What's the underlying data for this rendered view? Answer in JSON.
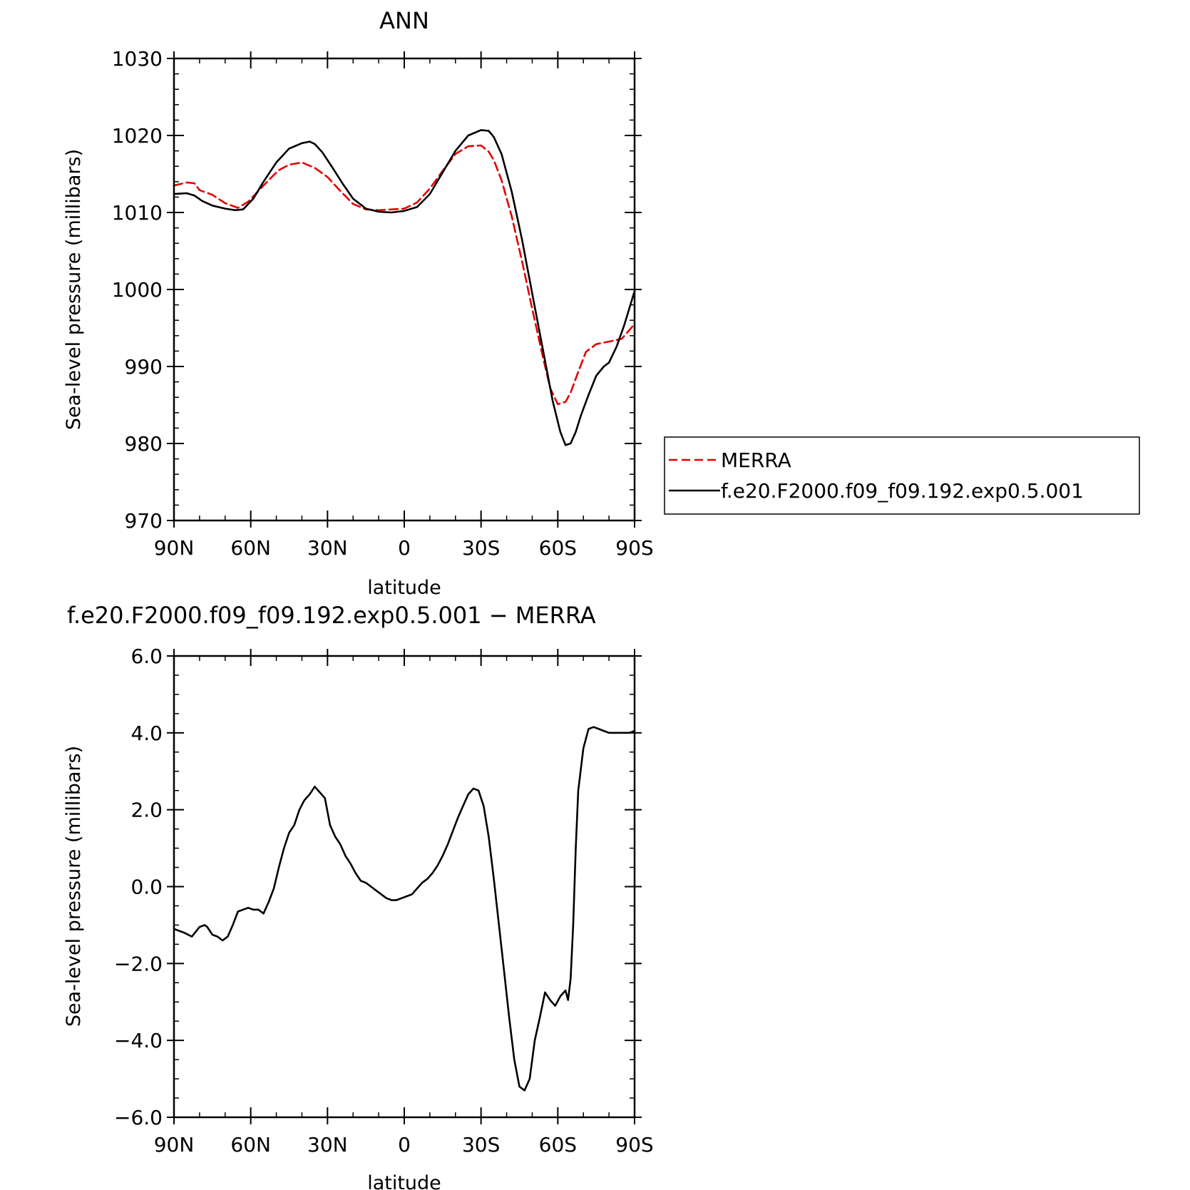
{
  "chart_data": [
    {
      "type": "line",
      "title": "ANN",
      "xlabel": "latitude",
      "ylabel": "Sea-level pressure (millibars)",
      "x_ticks": [
        "90N",
        "60N",
        "30N",
        "0",
        "30S",
        "60S",
        "90S"
      ],
      "y_ticks": [
        "970",
        "980",
        "990",
        "1000",
        "1010",
        "1020",
        "1030"
      ],
      "xlim": [
        90,
        -90
      ],
      "ylim": [
        970,
        1030
      ],
      "grid": false,
      "legend_position": "right",
      "series": [
        {
          "name": "MERRA",
          "color": "#e60000",
          "dash": "dashed",
          "x": [
            90,
            85,
            82,
            80,
            75,
            70,
            65,
            61,
            57,
            53,
            49,
            45,
            40,
            35,
            30,
            25,
            20,
            15,
            10,
            5,
            0,
            -5,
            -10,
            -15,
            -20,
            -25,
            -30,
            -33,
            -35,
            -38,
            -42,
            -46,
            -50,
            -54,
            -57,
            -60,
            -63,
            -65,
            -68,
            -71,
            -75,
            -78,
            -81,
            -85,
            -90
          ],
          "y": [
            1013.5,
            1013.9,
            1013.8,
            1012.9,
            1012.3,
            1011.2,
            1010.6,
            1011.4,
            1012.8,
            1014.2,
            1015.5,
            1016.2,
            1016.5,
            1015.8,
            1014.6,
            1012.8,
            1011.1,
            1010.4,
            1010.3,
            1010.4,
            1010.5,
            1011.3,
            1013.1,
            1015.4,
            1017.6,
            1018.6,
            1018.7,
            1017.9,
            1016.8,
            1014.2,
            1009.5,
            1003.7,
            997.5,
            991.5,
            987.2,
            985.1,
            985.4,
            986.6,
            989.3,
            991.9,
            992.9,
            993.1,
            993.3,
            993.6,
            995.5
          ]
        },
        {
          "name": "f.e20.F2000.f09_f09.192.exp0.5.001",
          "color": "#000000",
          "dash": "solid",
          "x": [
            90,
            85,
            82,
            79,
            75,
            70,
            66,
            63,
            59,
            55,
            50,
            45,
            40,
            37,
            35,
            32,
            28,
            24,
            20,
            15,
            10,
            5,
            0,
            -5,
            -10,
            -15,
            -20,
            -25,
            -30,
            -33,
            -35,
            -38,
            -42,
            -46,
            -50,
            -54,
            -58,
            -61,
            -63,
            -65,
            -67,
            -69,
            -72,
            -75,
            -78,
            -80,
            -83,
            -86,
            -90
          ],
          "y": [
            1012.4,
            1012.5,
            1012.2,
            1011.5,
            1010.9,
            1010.5,
            1010.3,
            1010.4,
            1011.8,
            1014.0,
            1016.5,
            1018.3,
            1019.0,
            1019.2,
            1018.9,
            1017.8,
            1015.8,
            1013.7,
            1011.8,
            1010.5,
            1010.1,
            1010.0,
            1010.2,
            1010.7,
            1012.4,
            1015.2,
            1018.0,
            1020.0,
            1020.7,
            1020.6,
            1019.8,
            1017.6,
            1012.7,
            1006.5,
            999.5,
            992.5,
            985.5,
            981.5,
            979.8,
            980.0,
            981.5,
            983.6,
            986.3,
            988.8,
            990.0,
            990.5,
            992.6,
            995.4,
            999.8
          ]
        }
      ]
    },
    {
      "type": "line",
      "title": "f.e20.F2000.f09_f09.192.exp0.5.001 − MERRA",
      "xlabel": "latitude",
      "ylabel": "Sea-level pressure (millibars)",
      "x_ticks": [
        "90N",
        "60N",
        "30N",
        "0",
        "30S",
        "60S",
        "90S"
      ],
      "y_ticks": [
        "−6.0",
        "−4.0",
        "−2.0",
        "0.0",
        "2.0",
        "4.0",
        "6.0"
      ],
      "xlim": [
        90,
        -90
      ],
      "ylim": [
        -6,
        6
      ],
      "grid": false,
      "series": [
        {
          "color": "#000000",
          "dash": "solid",
          "x": [
            90,
            88,
            86,
            83,
            80,
            78,
            77,
            75,
            73,
            71,
            69,
            67,
            65,
            63,
            61,
            59,
            57,
            55,
            53,
            51,
            49,
            47,
            45,
            43,
            41,
            39,
            37,
            35,
            33,
            31,
            29,
            27,
            25,
            23,
            21,
            19,
            17,
            15,
            13,
            11,
            9,
            7,
            5,
            3,
            1,
            -1,
            -3,
            -5,
            -7,
            -9,
            -11,
            -13,
            -15,
            -17,
            -19,
            -21,
            -23,
            -25,
            -27,
            -29,
            -31,
            -33,
            -35,
            -37,
            -39,
            -41,
            -43,
            -45,
            -47,
            -49,
            -51,
            -53,
            -55,
            -57,
            -59,
            -61,
            -63,
            -64,
            -65,
            -66,
            -67,
            -68,
            -70,
            -72,
            -74,
            -76,
            -78,
            -80,
            -82,
            -84,
            -86,
            -88,
            -90
          ],
          "y": [
            -1.1,
            -1.15,
            -1.2,
            -1.3,
            -1.05,
            -1.0,
            -1.05,
            -1.25,
            -1.3,
            -1.4,
            -1.3,
            -1.0,
            -0.65,
            -0.6,
            -0.55,
            -0.6,
            -0.6,
            -0.7,
            -0.4,
            -0.05,
            0.5,
            1.0,
            1.4,
            1.6,
            2.0,
            2.25,
            2.4,
            2.6,
            2.45,
            2.3,
            1.6,
            1.3,
            1.1,
            0.8,
            0.6,
            0.35,
            0.15,
            0.1,
            0.0,
            -0.1,
            -0.2,
            -0.3,
            -0.35,
            -0.35,
            -0.3,
            -0.25,
            -0.2,
            -0.05,
            0.1,
            0.2,
            0.35,
            0.55,
            0.8,
            1.1,
            1.45,
            1.8,
            2.1,
            2.4,
            2.55,
            2.5,
            2.1,
            1.3,
            0.2,
            -1.0,
            -2.2,
            -3.4,
            -4.5,
            -5.2,
            -5.3,
            -5.0,
            -4.0,
            -3.4,
            -2.75,
            -2.95,
            -3.1,
            -2.85,
            -2.7,
            -2.95,
            -2.4,
            -1.0,
            1.0,
            2.5,
            3.6,
            4.1,
            4.15,
            4.1,
            4.05,
            4.0,
            4.0,
            4.0,
            4.0,
            4.0,
            4.05
          ]
        }
      ]
    }
  ]
}
